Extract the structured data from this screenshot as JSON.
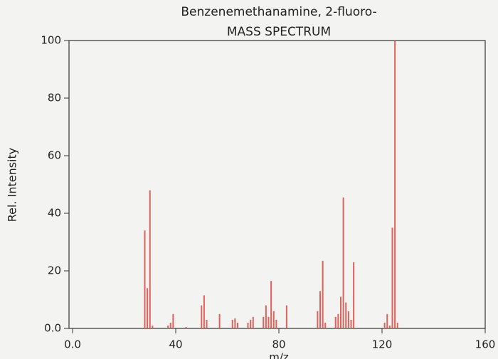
{
  "chart_data": {
    "type": "stem",
    "title": "Benzenemethanamine, 2-fluoro-",
    "subtitle": "MASS SPECTRUM",
    "x_label": "m/z",
    "y_label": "Rel. Intensity",
    "color": "#e0605a",
    "xlim": [
      0,
      160
    ],
    "ylim": [
      0,
      100
    ],
    "xticks": [
      {
        "value": 0,
        "label": "0.0"
      },
      40,
      80,
      120,
      160
    ],
    "yticks": [
      {
        "value": 0,
        "label": "0.0"
      },
      20,
      40,
      60,
      80,
      100
    ],
    "x": [
      28,
      29,
      30,
      31,
      37,
      38,
      39,
      44,
      50,
      51,
      52,
      57,
      62,
      63,
      64,
      68,
      69,
      70,
      74,
      75,
      76,
      77,
      78,
      79,
      83,
      95,
      96,
      97,
      98,
      102,
      103,
      104,
      105,
      106,
      107,
      108,
      109,
      121,
      122,
      123,
      124,
      125,
      126
    ],
    "values": [
      34,
      14,
      48,
      1,
      1,
      2,
      5,
      0.5,
      8,
      11.5,
      3,
      5,
      3,
      3.5,
      2,
      2,
      3,
      4,
      4,
      8,
      4,
      16.5,
      6,
      3,
      8,
      6,
      13,
      23.5,
      2,
      4,
      5,
      11,
      45.5,
      9,
      6,
      3,
      23,
      2,
      5,
      1,
      35,
      100,
      2
    ]
  }
}
